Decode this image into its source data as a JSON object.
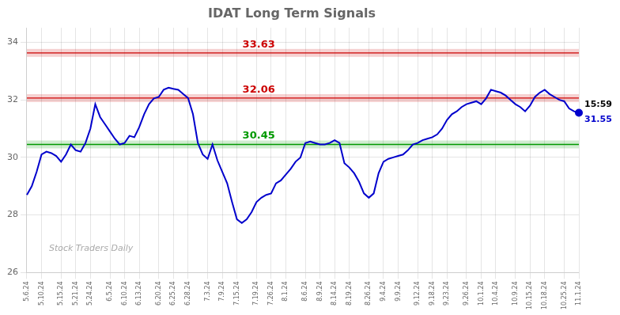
{
  "chart_data": {
    "type": "line",
    "title": "IDAT Long Term Signals",
    "categories": [
      "5.6.24",
      null,
      null,
      "5.10.24",
      null,
      null,
      null,
      "5.15.24",
      null,
      null,
      "5.21.24",
      null,
      null,
      "5.24.24",
      null,
      null,
      null,
      "6.5.24",
      null,
      null,
      "6.10.24",
      null,
      null,
      "6.13.24",
      null,
      null,
      null,
      "6.20.24",
      null,
      null,
      "6.25.24",
      null,
      null,
      "6.28.24",
      null,
      null,
      null,
      "7.3.24",
      null,
      null,
      "7.9.24",
      null,
      null,
      "7.15.24",
      null,
      null,
      null,
      "7.19.24",
      null,
      null,
      "7.26.24",
      null,
      null,
      "8.1.24",
      null,
      null,
      null,
      "8.6.24",
      null,
      null,
      "8.9.24",
      null,
      null,
      "8.14.24",
      null,
      null,
      "8.19.24",
      null,
      null,
      null,
      "8.26.24",
      null,
      null,
      "9.4.24",
      null,
      null,
      "9.9.24",
      null,
      null,
      null,
      "9.12.24",
      null,
      null,
      "9.18.24",
      null,
      null,
      "9.23.24",
      null,
      null,
      null,
      "9.26.24",
      null,
      null,
      "10.1.24",
      null,
      null,
      "10.4.24",
      null,
      null,
      null,
      "10.9.24",
      null,
      null,
      "10.15.24",
      null,
      null,
      "10.18.24",
      null,
      null,
      null,
      "10.25.24",
      null,
      null,
      "11.1.24"
    ],
    "values": [
      28.7,
      29.0,
      29.5,
      30.1,
      30.2,
      30.15,
      30.05,
      29.85,
      30.1,
      30.45,
      30.25,
      30.2,
      30.5,
      31.0,
      31.85,
      31.4,
      31.15,
      30.9,
      30.65,
      30.45,
      30.5,
      30.75,
      30.7,
      31.05,
      31.5,
      31.85,
      32.05,
      32.1,
      32.35,
      32.42,
      32.38,
      32.35,
      32.2,
      32.06,
      31.5,
      30.5,
      30.1,
      29.95,
      30.45,
      29.9,
      29.5,
      29.1,
      28.45,
      27.85,
      27.72,
      27.85,
      28.1,
      28.45,
      28.6,
      28.7,
      28.75,
      29.1,
      29.2,
      29.4,
      29.6,
      29.85,
      30.0,
      30.5,
      30.55,
      30.5,
      30.45,
      30.45,
      30.5,
      30.6,
      30.5,
      29.8,
      29.65,
      29.45,
      29.15,
      28.75,
      28.6,
      28.75,
      29.45,
      29.85,
      29.95,
      30.0,
      30.05,
      30.1,
      30.25,
      30.45,
      30.5,
      30.6,
      30.65,
      30.7,
      30.8,
      31.0,
      31.3,
      31.5,
      31.6,
      31.75,
      31.85,
      31.9,
      31.95,
      31.85,
      32.05,
      32.35,
      32.3,
      32.25,
      32.15,
      32.0,
      31.85,
      31.75,
      31.6,
      31.8,
      32.1,
      32.25,
      32.35,
      32.2,
      32.1,
      32.0,
      31.95,
      31.7,
      31.6,
      31.55
    ],
    "color": "#0000cc",
    "ylim": [
      26,
      34.5
    ],
    "yticks": [
      26,
      28,
      30,
      32,
      34
    ],
    "grid": true,
    "reference_lines": [
      {
        "value": 33.63,
        "label": "33.63",
        "color": "#cc0000"
      },
      {
        "value": 32.06,
        "label": "32.06",
        "color": "#cc0000"
      },
      {
        "value": 30.45,
        "label": "30.45",
        "color": "#009900"
      }
    ],
    "last_point": {
      "label": "15:59",
      "value_label": "31.55"
    },
    "watermark": "Stock Traders Daily"
  }
}
